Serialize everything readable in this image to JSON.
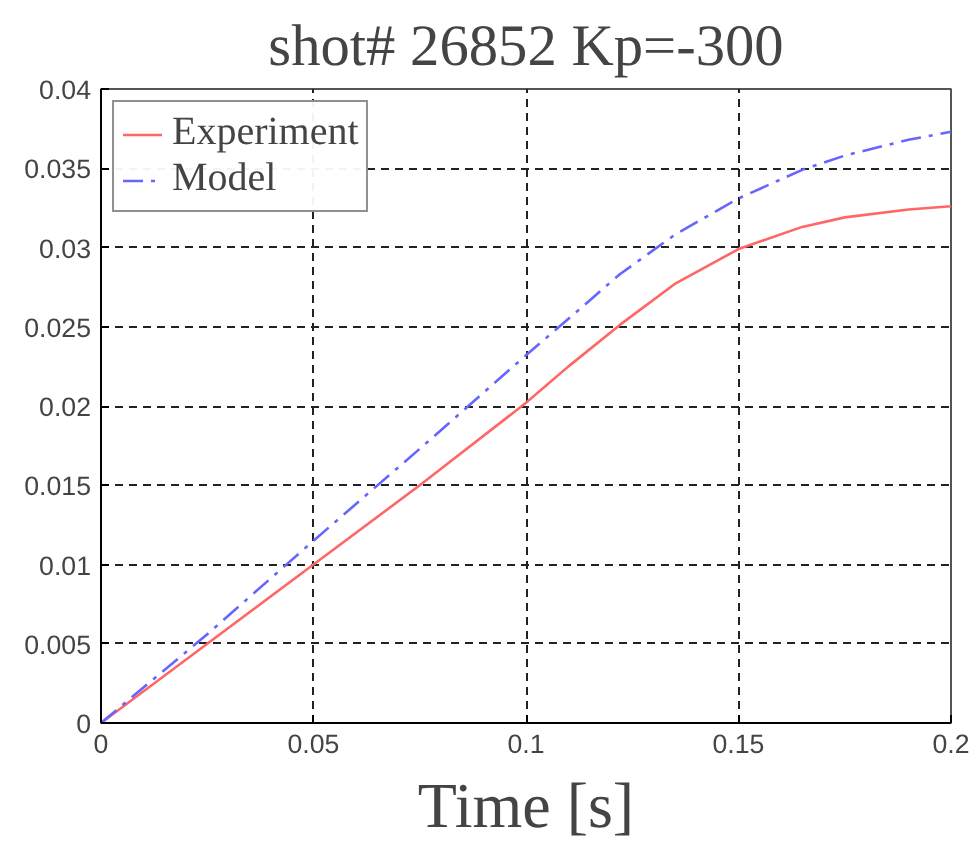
{
  "chart_data": {
    "type": "line",
    "title": "shot# 26852 Kp=-300",
    "xlabel": "Time [s]",
    "x": [
      0,
      0.025,
      0.05,
      0.075,
      0.1,
      0.11,
      0.122,
      0.135,
      0.15,
      0.165,
      0.175,
      0.19,
      0.2
    ],
    "series": [
      {
        "name": "Experiment",
        "color": "#ff6666",
        "line_style": "solid",
        "values": [
          0,
          0.005,
          0.01,
          0.015,
          0.0202,
          0.0225,
          0.0251,
          0.0277,
          0.0299,
          0.0313,
          0.0319,
          0.0324,
          0.0326
        ]
      },
      {
        "name": "Model",
        "color": "#6666ff",
        "line_style": "dashdot",
        "values": [
          0,
          0.0056,
          0.0115,
          0.0173,
          0.0232,
          0.0255,
          0.0283,
          0.0308,
          0.0331,
          0.0349,
          0.0358,
          0.0368,
          0.0373
        ]
      }
    ],
    "xlim": [
      0,
      0.2
    ],
    "ylim": [
      0,
      0.04
    ],
    "xticks": [
      0,
      0.05,
      0.1,
      0.15,
      0.2
    ],
    "yticks": [
      0,
      0.005,
      0.01,
      0.015,
      0.02,
      0.025,
      0.03,
      0.035,
      0.04
    ],
    "grid": true,
    "legend": "top left"
  }
}
